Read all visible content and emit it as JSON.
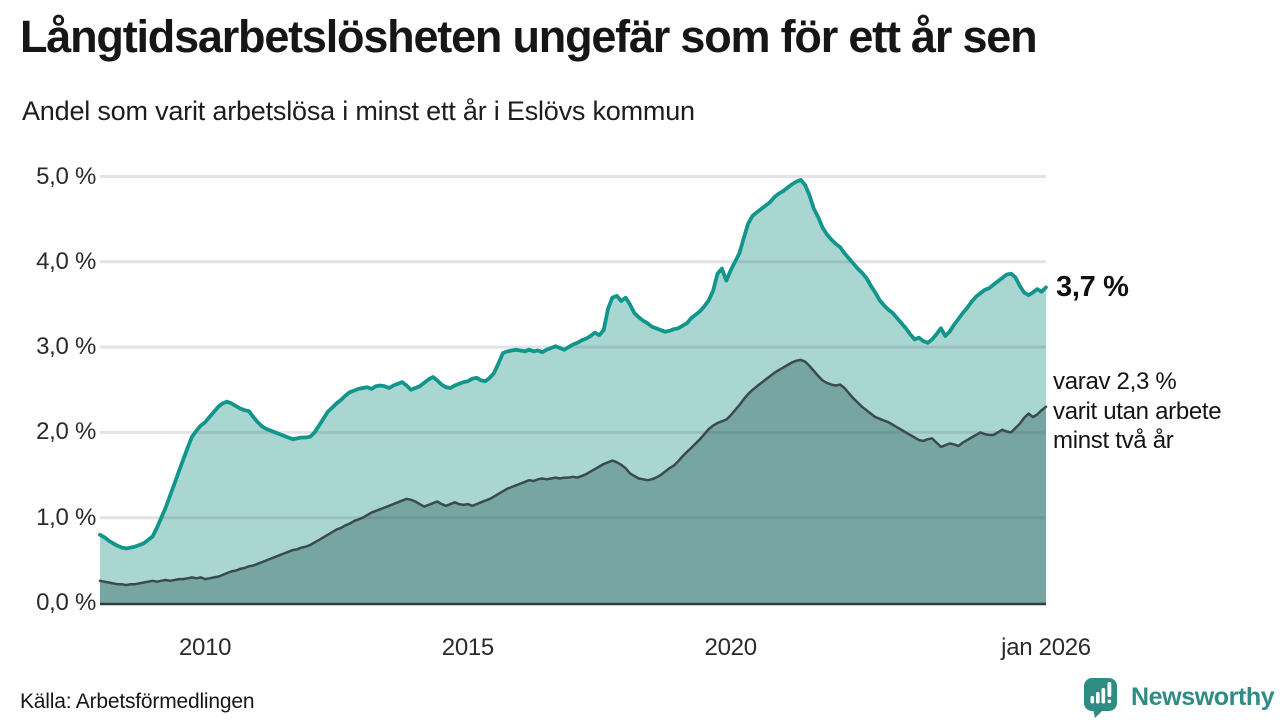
{
  "header": {
    "title": "Långtidsarbetslösheten ungefär som för ett år sen",
    "subtitle": "Andel som varit arbetslösa i minst ett år i Eslövs kommun"
  },
  "chart_data": {
    "type": "area",
    "unit": "%",
    "grid": true,
    "x_start_year": 2008,
    "x_months_per_point": 1,
    "ylim": [
      0,
      5
    ],
    "y_ticks": [
      {
        "value": 0,
        "label": "0,0 %"
      },
      {
        "value": 1,
        "label": "1,0 %"
      },
      {
        "value": 2,
        "label": "2,0 %"
      },
      {
        "value": 3,
        "label": "3,0 %"
      },
      {
        "value": 4,
        "label": "4,0 %"
      },
      {
        "value": 5,
        "label": "5,0 %"
      }
    ],
    "x_ticks": [
      {
        "year": 2010,
        "label": "2010"
      },
      {
        "year": 2015,
        "label": "2015"
      },
      {
        "year": 2020,
        "label": "2020"
      },
      {
        "year": 2026,
        "label": "jan 2026"
      }
    ],
    "series": [
      {
        "name": "Arbetslösa minst ett år",
        "line_color": "#12968c",
        "fill_color": "#aad6d2",
        "line_width": 3.8,
        "last_value_label": "3,7 %",
        "values": [
          0.8,
          0.77,
          0.73,
          0.7,
          0.67,
          0.65,
          0.64,
          0.65,
          0.66,
          0.68,
          0.7,
          0.74,
          0.78,
          0.88,
          1.0,
          1.12,
          1.26,
          1.4,
          1.54,
          1.68,
          1.82,
          1.95,
          2.02,
          2.08,
          2.12,
          2.18,
          2.24,
          2.3,
          2.34,
          2.36,
          2.34,
          2.31,
          2.28,
          2.26,
          2.25,
          2.18,
          2.12,
          2.07,
          2.04,
          2.02,
          2.0,
          1.98,
          1.96,
          1.94,
          1.92,
          1.93,
          1.94,
          1.94,
          1.95,
          2.0,
          2.08,
          2.16,
          2.24,
          2.29,
          2.34,
          2.38,
          2.43,
          2.47,
          2.49,
          2.51,
          2.52,
          2.53,
          2.51,
          2.54,
          2.55,
          2.54,
          2.52,
          2.55,
          2.57,
          2.59,
          2.55,
          2.5,
          2.52,
          2.54,
          2.58,
          2.62,
          2.65,
          2.61,
          2.56,
          2.53,
          2.52,
          2.55,
          2.57,
          2.59,
          2.6,
          2.63,
          2.64,
          2.61,
          2.6,
          2.64,
          2.7,
          2.81,
          2.93,
          2.95,
          2.96,
          2.97,
          2.96,
          2.95,
          2.97,
          2.95,
          2.96,
          2.94,
          2.97,
          2.99,
          3.01,
          2.99,
          2.97,
          3.0,
          3.03,
          3.05,
          3.08,
          3.1,
          3.13,
          3.17,
          3.14,
          3.2,
          3.45,
          3.58,
          3.6,
          3.54,
          3.58,
          3.5,
          3.4,
          3.35,
          3.31,
          3.28,
          3.24,
          3.22,
          3.2,
          3.18,
          3.19,
          3.21,
          3.22,
          3.25,
          3.28,
          3.34,
          3.38,
          3.42,
          3.48,
          3.55,
          3.66,
          3.86,
          3.92,
          3.78,
          3.9,
          4.0,
          4.1,
          4.28,
          4.45,
          4.54,
          4.58,
          4.62,
          4.66,
          4.7,
          4.76,
          4.8,
          4.83,
          4.87,
          4.91,
          4.94,
          4.96,
          4.9,
          4.78,
          4.62,
          4.52,
          4.4,
          4.32,
          4.26,
          4.21,
          4.17,
          4.1,
          4.04,
          3.98,
          3.92,
          3.87,
          3.81,
          3.72,
          3.64,
          3.55,
          3.49,
          3.44,
          3.4,
          3.34,
          3.28,
          3.22,
          3.15,
          3.09,
          3.11,
          3.07,
          3.05,
          3.09,
          3.15,
          3.22,
          3.13,
          3.18,
          3.26,
          3.33,
          3.4,
          3.46,
          3.53,
          3.59,
          3.63,
          3.67,
          3.69,
          3.73,
          3.77,
          3.81,
          3.85,
          3.86,
          3.82,
          3.72,
          3.64,
          3.61,
          3.64,
          3.68,
          3.65,
          3.7
        ]
      },
      {
        "name": "Arbetslösa minst två år",
        "line_color": "#3a4b4e",
        "fill_color": "#77a6a2",
        "line_width": 2.5,
        "last_value_label": "2,3 %",
        "values": [
          0.26,
          0.25,
          0.24,
          0.23,
          0.22,
          0.22,
          0.21,
          0.22,
          0.22,
          0.23,
          0.24,
          0.25,
          0.26,
          0.25,
          0.26,
          0.27,
          0.26,
          0.27,
          0.28,
          0.28,
          0.29,
          0.3,
          0.29,
          0.3,
          0.28,
          0.29,
          0.3,
          0.31,
          0.33,
          0.35,
          0.37,
          0.38,
          0.4,
          0.41,
          0.43,
          0.44,
          0.46,
          0.48,
          0.5,
          0.52,
          0.54,
          0.56,
          0.58,
          0.6,
          0.62,
          0.63,
          0.65,
          0.66,
          0.68,
          0.71,
          0.74,
          0.77,
          0.8,
          0.83,
          0.86,
          0.88,
          0.91,
          0.93,
          0.96,
          0.98,
          1.0,
          1.03,
          1.06,
          1.08,
          1.1,
          1.12,
          1.14,
          1.16,
          1.18,
          1.2,
          1.22,
          1.21,
          1.19,
          1.16,
          1.13,
          1.15,
          1.17,
          1.19,
          1.16,
          1.14,
          1.16,
          1.18,
          1.16,
          1.15,
          1.16,
          1.14,
          1.16,
          1.18,
          1.2,
          1.22,
          1.25,
          1.28,
          1.31,
          1.34,
          1.36,
          1.38,
          1.4,
          1.42,
          1.44,
          1.43,
          1.45,
          1.46,
          1.45,
          1.46,
          1.47,
          1.46,
          1.47,
          1.47,
          1.48,
          1.47,
          1.49,
          1.51,
          1.54,
          1.57,
          1.6,
          1.63,
          1.65,
          1.67,
          1.65,
          1.62,
          1.58,
          1.52,
          1.49,
          1.46,
          1.45,
          1.44,
          1.45,
          1.47,
          1.5,
          1.54,
          1.58,
          1.61,
          1.66,
          1.72,
          1.77,
          1.82,
          1.87,
          1.92,
          1.98,
          2.04,
          2.08,
          2.11,
          2.13,
          2.15,
          2.2,
          2.26,
          2.32,
          2.39,
          2.45,
          2.5,
          2.54,
          2.58,
          2.62,
          2.66,
          2.7,
          2.73,
          2.76,
          2.79,
          2.82,
          2.84,
          2.85,
          2.83,
          2.78,
          2.72,
          2.66,
          2.61,
          2.58,
          2.56,
          2.55,
          2.56,
          2.52,
          2.46,
          2.4,
          2.35,
          2.3,
          2.26,
          2.22,
          2.18,
          2.16,
          2.14,
          2.12,
          2.09,
          2.06,
          2.03,
          2.0,
          1.97,
          1.94,
          1.91,
          1.9,
          1.92,
          1.93,
          1.88,
          1.83,
          1.85,
          1.87,
          1.86,
          1.84,
          1.88,
          1.91,
          1.94,
          1.97,
          2.0,
          1.98,
          1.97,
          1.97,
          2.0,
          2.03,
          2.01,
          2.0,
          2.05,
          2.1,
          2.17,
          2.22,
          2.18,
          2.21,
          2.26,
          2.3
        ]
      }
    ]
  },
  "annotations": {
    "value_label": "3,7 %",
    "sub_lines": [
      "varav 2,3 %",
      "varit utan arbete",
      "minst två år"
    ]
  },
  "footer": {
    "source": "Källa: Arbetsförmedlingen",
    "brand": "Newsworthy"
  },
  "colors": {
    "accent_teal": "#12968c",
    "light_fill": "#aad6d2",
    "dark_fill": "#77a6a2",
    "dark_line": "#3a4b4e",
    "brand_teal": "#2e8c83",
    "gridline": "#e4e4ea"
  }
}
